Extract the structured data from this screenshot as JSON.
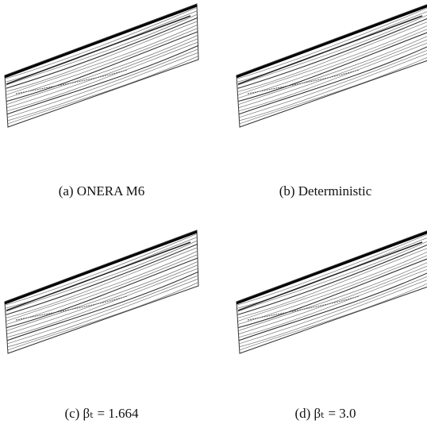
{
  "panels": [
    {
      "caption": "(a) ONERA M6"
    },
    {
      "caption": "(b) Deterministic"
    },
    {
      "caption": "(c) βₜ = 1.664"
    },
    {
      "caption": "(d) βₜ = 3.0"
    }
  ]
}
